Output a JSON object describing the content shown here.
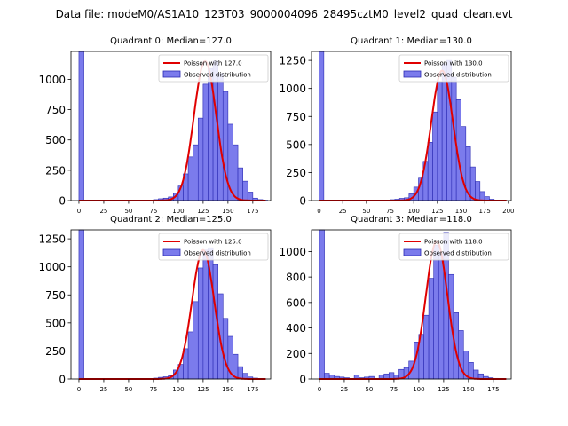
{
  "figure": {
    "suptitle": "Data file: modeM0/AS1A10_123T03_9000004096_28495cztM0_level2_quad_clean.evt"
  },
  "colors": {
    "bar_fill": "#7b7bec",
    "bar_edge": "#2b2bb3",
    "poisson_line": "#e00000",
    "axis": "#000000"
  },
  "chart_data": [
    {
      "type": "bar",
      "title": "Quadrant 0: Median=127.0",
      "xticks": [
        0,
        25,
        50,
        75,
        100,
        125,
        150,
        175
      ],
      "yticks": [
        0,
        250,
        500,
        750,
        1000
      ],
      "xlim": [
        -8,
        193
      ],
      "ylim": [
        0,
        1230
      ],
      "bin_width": 5,
      "legend": [
        "Poisson with 127.0",
        "Observed distribution"
      ],
      "legend_loc": "upper right",
      "poisson_mean": 127.0,
      "poisson_peak": 1150,
      "histogram": [
        [
          0,
          1230
        ],
        [
          5,
          0
        ],
        [
          10,
          0
        ],
        [
          15,
          0
        ],
        [
          20,
          0
        ],
        [
          25,
          0
        ],
        [
          30,
          0
        ],
        [
          35,
          0
        ],
        [
          40,
          0
        ],
        [
          45,
          0
        ],
        [
          50,
          0
        ],
        [
          55,
          0
        ],
        [
          60,
          0
        ],
        [
          65,
          0
        ],
        [
          70,
          5
        ],
        [
          75,
          8
        ],
        [
          80,
          15
        ],
        [
          85,
          20
        ],
        [
          90,
          30
        ],
        [
          95,
          60
        ],
        [
          100,
          120
        ],
        [
          105,
          220
        ],
        [
          110,
          360
        ],
        [
          115,
          460
        ],
        [
          120,
          680
        ],
        [
          125,
          960
        ],
        [
          130,
          1090
        ],
        [
          135,
          1150
        ],
        [
          140,
          1050
        ],
        [
          145,
          900
        ],
        [
          150,
          630
        ],
        [
          155,
          460
        ],
        [
          160,
          270
        ],
        [
          165,
          160
        ],
        [
          170,
          70
        ],
        [
          175,
          20
        ],
        [
          180,
          8
        ],
        [
          185,
          3
        ]
      ]
    },
    {
      "type": "bar",
      "title": "Quadrant 1: Median=130.0",
      "xticks": [
        0,
        25,
        50,
        75,
        100,
        125,
        150,
        175,
        200
      ],
      "yticks": [
        0,
        250,
        500,
        750,
        1000,
        1250
      ],
      "xlim": [
        -8,
        203
      ],
      "ylim": [
        0,
        1330
      ],
      "bin_width": 5,
      "legend": [
        "Poisson with 130.0",
        "Observed distribution"
      ],
      "legend_loc": "upper right",
      "poisson_mean": 130.0,
      "poisson_peak": 1160,
      "histogram": [
        [
          0,
          1330
        ],
        [
          5,
          0
        ],
        [
          10,
          0
        ],
        [
          15,
          0
        ],
        [
          20,
          0
        ],
        [
          25,
          0
        ],
        [
          30,
          0
        ],
        [
          35,
          0
        ],
        [
          40,
          0
        ],
        [
          45,
          0
        ],
        [
          50,
          0
        ],
        [
          55,
          0
        ],
        [
          60,
          0
        ],
        [
          65,
          0
        ],
        [
          70,
          5
        ],
        [
          75,
          8
        ],
        [
          80,
          12
        ],
        [
          85,
          20
        ],
        [
          90,
          25
        ],
        [
          95,
          60
        ],
        [
          100,
          120
        ],
        [
          105,
          200
        ],
        [
          110,
          350
        ],
        [
          115,
          520
        ],
        [
          120,
          790
        ],
        [
          125,
          1060
        ],
        [
          130,
          1220
        ],
        [
          135,
          1250
        ],
        [
          140,
          1100
        ],
        [
          145,
          900
        ],
        [
          150,
          660
        ],
        [
          155,
          480
        ],
        [
          160,
          300
        ],
        [
          165,
          170
        ],
        [
          170,
          80
        ],
        [
          175,
          35
        ],
        [
          180,
          12
        ],
        [
          185,
          5
        ],
        [
          190,
          2
        ]
      ]
    },
    {
      "type": "bar",
      "title": "Quadrant 2: Median=125.0",
      "xticks": [
        0,
        25,
        50,
        75,
        100,
        125,
        150,
        175
      ],
      "yticks": [
        0,
        250,
        500,
        750,
        1000,
        1250
      ],
      "xlim": [
        -8,
        193
      ],
      "ylim": [
        0,
        1330
      ],
      "bin_width": 5,
      "legend": [
        "Poisson with 125.0",
        "Observed distribution"
      ],
      "legend_loc": "upper right",
      "poisson_mean": 125.0,
      "poisson_peak": 1150,
      "histogram": [
        [
          0,
          1330
        ],
        [
          5,
          0
        ],
        [
          10,
          0
        ],
        [
          15,
          0
        ],
        [
          20,
          0
        ],
        [
          25,
          0
        ],
        [
          30,
          0
        ],
        [
          35,
          0
        ],
        [
          40,
          0
        ],
        [
          45,
          0
        ],
        [
          50,
          0
        ],
        [
          55,
          0
        ],
        [
          60,
          0
        ],
        [
          65,
          0
        ],
        [
          70,
          5
        ],
        [
          75,
          8
        ],
        [
          80,
          15
        ],
        [
          85,
          20
        ],
        [
          90,
          30
        ],
        [
          95,
          80
        ],
        [
          100,
          130
        ],
        [
          105,
          270
        ],
        [
          110,
          420
        ],
        [
          115,
          690
        ],
        [
          120,
          990
        ],
        [
          125,
          1150
        ],
        [
          130,
          1170
        ],
        [
          135,
          1020
        ],
        [
          140,
          760
        ],
        [
          145,
          540
        ],
        [
          150,
          380
        ],
        [
          155,
          220
        ],
        [
          160,
          110
        ],
        [
          165,
          50
        ],
        [
          170,
          18
        ],
        [
          175,
          8
        ],
        [
          180,
          3
        ]
      ]
    },
    {
      "type": "bar",
      "title": "Quadrant 3: Median=118.0",
      "xticks": [
        0,
        25,
        50,
        75,
        100,
        125,
        150,
        175
      ],
      "yticks": [
        0,
        200,
        400,
        600,
        800,
        1000
      ],
      "xlim": [
        -8,
        193
      ],
      "ylim": [
        0,
        1170
      ],
      "bin_width": 5,
      "legend": [
        "Poisson with 118.0",
        "Observed distribution"
      ],
      "legend_loc": "upper right",
      "poisson_mean": 118.0,
      "poisson_peak": 1080,
      "histogram": [
        [
          0,
          1170
        ],
        [
          5,
          45
        ],
        [
          10,
          30
        ],
        [
          15,
          20
        ],
        [
          20,
          15
        ],
        [
          25,
          10
        ],
        [
          30,
          5
        ],
        [
          35,
          30
        ],
        [
          40,
          10
        ],
        [
          45,
          15
        ],
        [
          50,
          20
        ],
        [
          55,
          5
        ],
        [
          60,
          30
        ],
        [
          65,
          40
        ],
        [
          70,
          50
        ],
        [
          75,
          30
        ],
        [
          80,
          75
        ],
        [
          85,
          90
        ],
        [
          90,
          140
        ],
        [
          95,
          290
        ],
        [
          100,
          350
        ],
        [
          105,
          500
        ],
        [
          110,
          790
        ],
        [
          115,
          1050
        ],
        [
          120,
          990
        ],
        [
          125,
          1150
        ],
        [
          130,
          820
        ],
        [
          135,
          520
        ],
        [
          140,
          380
        ],
        [
          145,
          220
        ],
        [
          150,
          130
        ],
        [
          155,
          70
        ],
        [
          160,
          40
        ],
        [
          165,
          20
        ],
        [
          170,
          10
        ],
        [
          175,
          5
        ]
      ]
    }
  ]
}
